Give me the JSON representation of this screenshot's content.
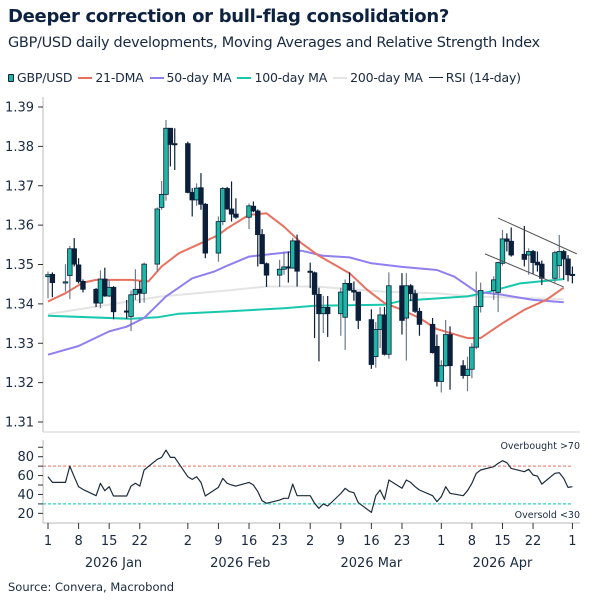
{
  "title": "Deeper correction or bull-flag consolidation?",
  "subtitle": "GBP/USD daily developments, Moving Averages and Relative Strength Index",
  "source": "Source: Convera, Macrobond",
  "legend": [
    {
      "label": "GBP/USD",
      "color": "#1fb5a5",
      "type": "candle"
    },
    {
      "label": "21-DMA",
      "color": "#e8705f",
      "type": "line"
    },
    {
      "label": "50-day MA",
      "color": "#8f7ff0",
      "type": "line"
    },
    {
      "label": "100-day MA",
      "color": "#17c8ae",
      "type": "line"
    },
    {
      "label": "200-day MA",
      "color": "#e4e4e4",
      "type": "line"
    },
    {
      "label": "RSI (14-day)",
      "color": "#1c2b3c",
      "type": "line"
    }
  ],
  "chart_data": {
    "type": "candlestick",
    "price_axis": {
      "ylim": [
        1.31,
        1.39
      ],
      "ticks": [
        "1.31",
        "1.32",
        "1.33",
        "1.34",
        "1.35",
        "1.36",
        "1.37",
        "1.38",
        "1.39"
      ]
    },
    "rsi_axis": {
      "ylim": [
        15,
        95
      ],
      "ticks": [
        "20",
        "40",
        "60",
        "80"
      ],
      "overbought": 70,
      "oversold": 30,
      "overbought_label": "Overbought >70",
      "oversold_label": "Oversold <30"
    },
    "x_axis": {
      "range": [
        "2026-01-01",
        "2026-05-01"
      ],
      "ticks": [
        {
          "date": "2026-01-01",
          "label": "1"
        },
        {
          "date": "2026-01-08",
          "label": "8"
        },
        {
          "date": "2026-01-15",
          "label": "15"
        },
        {
          "date": "2026-01-22",
          "label": "22"
        },
        {
          "date": "2026-02-02",
          "label": "2"
        },
        {
          "date": "2026-02-09",
          "label": "9"
        },
        {
          "date": "2026-02-16",
          "label": "16"
        },
        {
          "date": "2026-02-23",
          "label": "23"
        },
        {
          "date": "2026-03-02",
          "label": "2"
        },
        {
          "date": "2026-03-09",
          "label": "9"
        },
        {
          "date": "2026-03-16",
          "label": "16"
        },
        {
          "date": "2026-03-23",
          "label": "23"
        },
        {
          "date": "2026-04-01",
          "label": "1"
        },
        {
          "date": "2026-04-08",
          "label": "8"
        },
        {
          "date": "2026-04-15",
          "label": "15"
        },
        {
          "date": "2026-04-22",
          "label": "22"
        },
        {
          "date": "2026-05-01",
          "label": "1"
        }
      ],
      "months": [
        {
          "date": "2026-01-16",
          "label": "2026 Jan"
        },
        {
          "date": "2026-02-14",
          "label": "2026 Feb"
        },
        {
          "date": "2026-03-16",
          "label": "2026 Mar"
        },
        {
          "date": "2026-04-15",
          "label": "2026 Apr"
        }
      ]
    },
    "candle_colors": {
      "up": "#1fb5a5",
      "down": "#0b1f3a",
      "wick": "#6d7c8c"
    },
    "candles_columns": [
      "date",
      "open",
      "high",
      "low",
      "close"
    ],
    "candles": [
      [
        "2026-01-01",
        1.3469,
        1.3482,
        1.3414,
        1.3474
      ],
      [
        "2026-01-02",
        1.3475,
        1.348,
        1.3417,
        1.3454
      ],
      [
        "2026-01-05",
        1.3455,
        1.3501,
        1.3431,
        1.3456
      ],
      [
        "2026-01-06",
        1.3472,
        1.3547,
        1.3412,
        1.354
      ],
      [
        "2026-01-07",
        1.354,
        1.3567,
        1.3495,
        1.3501
      ],
      [
        "2026-01-08",
        1.3499,
        1.3516,
        1.3452,
        1.3457
      ],
      [
        "2026-01-09",
        1.3457,
        1.3462,
        1.3429,
        1.3437
      ],
      [
        "2026-01-12",
        1.3437,
        1.344,
        1.3392,
        1.3402
      ],
      [
        "2026-01-13",
        1.3402,
        1.3485,
        1.3389,
        1.3463
      ],
      [
        "2026-01-14",
        1.3463,
        1.3492,
        1.3418,
        1.342
      ],
      [
        "2026-01-15",
        1.342,
        1.3461,
        1.3417,
        1.3442
      ],
      [
        "2026-01-16",
        1.3442,
        1.3445,
        1.3361,
        1.338
      ],
      [
        "2026-01-19",
        1.3382,
        1.341,
        1.3362,
        1.3379
      ],
      [
        "2026-01-20",
        1.3368,
        1.3434,
        1.3331,
        1.3423
      ],
      [
        "2026-01-21",
        1.3424,
        1.3488,
        1.341,
        1.3437
      ],
      [
        "2026-01-22",
        1.3437,
        1.3458,
        1.3402,
        1.3427
      ],
      [
        "2026-01-23",
        1.3427,
        1.3505,
        1.3403,
        1.3501
      ],
      [
        "2026-01-26",
        1.3501,
        1.3645,
        1.3482,
        1.3641
      ],
      [
        "2026-01-27",
        1.3645,
        1.3712,
        1.3639,
        1.3678
      ],
      [
        "2026-01-28",
        1.3678,
        1.3867,
        1.3662,
        1.3846
      ],
      [
        "2026-01-29",
        1.3846,
        1.3846,
        1.3749,
        1.3805
      ],
      [
        "2026-01-30",
        1.3807,
        1.3846,
        1.374,
        1.3805
      ],
      [
        "2026-02-02",
        1.3807,
        1.3812,
        1.3681,
        1.3683
      ],
      [
        "2026-02-03",
        1.3683,
        1.3694,
        1.3622,
        1.3664
      ],
      [
        "2026-02-04",
        1.3664,
        1.3706,
        1.3649,
        1.3694
      ],
      [
        "2026-02-05",
        1.3695,
        1.3732,
        1.3639,
        1.3653
      ],
      [
        "2026-02-06",
        1.3653,
        1.3656,
        1.3516,
        1.3529
      ],
      [
        "2026-02-09",
        1.3529,
        1.3622,
        1.3507,
        1.3609
      ],
      [
        "2026-02-10",
        1.3609,
        1.3697,
        1.36,
        1.3693
      ],
      [
        "2026-02-11",
        1.3693,
        1.3697,
        1.3639,
        1.3641
      ],
      [
        "2026-02-12",
        1.3641,
        1.3711,
        1.3609,
        1.3628
      ],
      [
        "2026-02-13",
        1.3628,
        1.3668,
        1.3616,
        1.362
      ],
      [
        "2026-02-16",
        1.362,
        1.3655,
        1.359,
        1.3649
      ],
      [
        "2026-02-17",
        1.3648,
        1.366,
        1.3633,
        1.3636
      ],
      [
        "2026-02-18",
        1.3636,
        1.364,
        1.3495,
        1.3576
      ],
      [
        "2026-02-19",
        1.3576,
        1.359,
        1.3502,
        1.3502
      ],
      [
        "2026-02-20",
        1.3502,
        1.3505,
        1.3443,
        1.3473
      ],
      [
        "2026-02-23",
        1.3473,
        1.3512,
        1.3443,
        1.3488
      ],
      [
        "2026-02-24",
        1.3488,
        1.3533,
        1.3474,
        1.3494
      ],
      [
        "2026-02-25",
        1.3494,
        1.3533,
        1.3454,
        1.3491
      ],
      [
        "2026-02-26",
        1.3491,
        1.3568,
        1.3489,
        1.356
      ],
      [
        "2026-02-27",
        1.356,
        1.3576,
        1.3444,
        1.3483
      ],
      [
        "2026-03-02",
        1.3483,
        1.3505,
        1.344,
        1.3481
      ],
      [
        "2026-03-03",
        1.3479,
        1.3482,
        1.3313,
        1.3424
      ],
      [
        "2026-03-04",
        1.3424,
        1.3441,
        1.3254,
        1.3375
      ],
      [
        "2026-03-05",
        1.3375,
        1.342,
        1.3326,
        1.3391
      ],
      [
        "2026-03-06",
        1.3391,
        1.342,
        1.3316,
        1.3375
      ],
      [
        "2026-03-09",
        1.3375,
        1.3441,
        1.3319,
        1.343
      ],
      [
        "2026-03-10",
        1.3366,
        1.3462,
        1.3283,
        1.3452
      ],
      [
        "2026-03-11",
        1.3452,
        1.348,
        1.3433,
        1.3435
      ],
      [
        "2026-03-12",
        1.3434,
        1.3457,
        1.3408,
        1.343
      ],
      [
        "2026-03-13",
        1.343,
        1.343,
        1.3336,
        1.3358
      ],
      [
        "2026-03-16",
        1.336,
        1.3386,
        1.3235,
        1.3246
      ],
      [
        "2026-03-17",
        1.3266,
        1.3354,
        1.3238,
        1.3335
      ],
      [
        "2026-03-18",
        1.3335,
        1.3392,
        1.3288,
        1.3372
      ],
      [
        "2026-03-19",
        1.3372,
        1.3392,
        1.3269,
        1.3272
      ],
      [
        "2026-03-20",
        1.3272,
        1.348,
        1.3261,
        1.3446
      ],
      [
        "2026-03-23",
        1.3446,
        1.3478,
        1.3322,
        1.3358
      ],
      [
        "2026-03-24",
        1.3364,
        1.3478,
        1.3256,
        1.3446
      ],
      [
        "2026-03-25",
        1.3446,
        1.345,
        1.3407,
        1.3426
      ],
      [
        "2026-03-26",
        1.3426,
        1.3436,
        1.3377,
        1.3381
      ],
      [
        "2026-03-27",
        1.3381,
        1.339,
        1.3319,
        1.3348
      ],
      [
        "2026-03-30",
        1.3348,
        1.3364,
        1.3274,
        1.3276
      ],
      [
        "2026-03-31",
        1.3292,
        1.3322,
        1.319,
        1.3203
      ],
      [
        "2026-04-01",
        1.3203,
        1.3257,
        1.3175,
        1.3243
      ],
      [
        "2026-04-02",
        1.3243,
        1.3359,
        1.324,
        1.3322
      ],
      [
        "2026-04-03",
        1.3322,
        1.3343,
        1.3182,
        1.3243
      ],
      [
        "2026-04-06",
        1.3243,
        1.3257,
        1.321,
        1.3218
      ],
      [
        "2026-04-07",
        1.3218,
        1.3266,
        1.3178,
        1.3234
      ],
      [
        "2026-04-08",
        1.3234,
        1.33,
        1.3211,
        1.329
      ],
      [
        "2026-04-09",
        1.329,
        1.3482,
        1.3285,
        1.3393
      ],
      [
        "2026-04-10",
        1.3393,
        1.3454,
        1.3378,
        1.3434
      ],
      [
        "2026-04-13",
        1.3434,
        1.347,
        1.341,
        1.3461
      ],
      [
        "2026-04-14",
        1.3429,
        1.3507,
        1.3379,
        1.3505
      ],
      [
        "2026-04-15",
        1.3503,
        1.3588,
        1.3497,
        1.3565
      ],
      [
        "2026-04-16",
        1.3565,
        1.3579,
        1.3533,
        1.3559
      ],
      [
        "2026-04-17",
        1.3559,
        1.3594,
        1.352,
        1.3524
      ],
      [
        "2026-04-20",
        1.3526,
        1.3598,
        1.3495,
        1.3513
      ],
      [
        "2026-04-21",
        1.3524,
        1.3541,
        1.3474,
        1.3533
      ],
      [
        "2026-04-22",
        1.3533,
        1.3537,
        1.3476,
        1.3505
      ],
      [
        "2026-04-23",
        1.3506,
        1.3533,
        1.3482,
        1.3499
      ],
      [
        "2026-04-24",
        1.3501,
        1.351,
        1.3448,
        1.3465
      ],
      [
        "2026-04-27",
        1.3465,
        1.3535,
        1.3454,
        1.353
      ],
      [
        "2026-04-28",
        1.3497,
        1.3575,
        1.3465,
        1.3533
      ],
      [
        "2026-04-29",
        1.3533,
        1.3537,
        1.3461,
        1.3514
      ],
      [
        "2026-04-30",
        1.3514,
        1.3524,
        1.3457,
        1.3474
      ],
      [
        "2026-05-01",
        1.3475,
        1.3495,
        1.3452,
        1.3474
      ]
    ],
    "moving_averages": [
      {
        "name": "21-DMA",
        "color": "#e8705f",
        "points": [
          [
            "2026-01-01",
            1.3406
          ],
          [
            "2026-01-05",
            1.3427
          ],
          [
            "2026-01-09",
            1.3454
          ],
          [
            "2026-01-12",
            1.3461
          ],
          [
            "2026-01-20",
            1.3461
          ],
          [
            "2026-01-24",
            1.3457
          ],
          [
            "2026-01-27",
            1.3495
          ],
          [
            "2026-01-31",
            1.3529
          ],
          [
            "2026-02-05",
            1.3554
          ],
          [
            "2026-02-09",
            1.3575
          ],
          [
            "2026-02-11",
            1.3592
          ],
          [
            "2026-02-16",
            1.3626
          ],
          [
            "2026-02-20",
            1.363
          ],
          [
            "2026-02-24",
            1.3596
          ],
          [
            "2026-02-28",
            1.3554
          ],
          [
            "2026-03-04",
            1.3522
          ],
          [
            "2026-03-11",
            1.3478
          ],
          [
            "2026-03-15",
            1.3436
          ],
          [
            "2026-03-19",
            1.3402
          ],
          [
            "2026-03-23",
            1.3385
          ],
          [
            "2026-03-27",
            1.3364
          ],
          [
            "2026-03-31",
            1.3336
          ],
          [
            "2026-04-07",
            1.3313
          ],
          [
            "2026-04-10",
            1.3313
          ],
          [
            "2026-04-15",
            1.3351
          ],
          [
            "2026-04-20",
            1.3385
          ],
          [
            "2026-04-25",
            1.341
          ],
          [
            "2026-04-29",
            1.3441
          ]
        ]
      },
      {
        "name": "50-day MA",
        "color": "#8f7ff0",
        "points": [
          [
            "2026-01-01",
            1.3271
          ],
          [
            "2026-01-08",
            1.3293
          ],
          [
            "2026-01-15",
            1.333
          ],
          [
            "2026-01-19",
            1.3342
          ],
          [
            "2026-01-23",
            1.3364
          ],
          [
            "2026-01-28",
            1.3419
          ],
          [
            "2026-02-03",
            1.3465
          ],
          [
            "2026-02-08",
            1.3482
          ],
          [
            "2026-02-11",
            1.3497
          ],
          [
            "2026-02-16",
            1.352
          ],
          [
            "2026-02-28",
            1.3535
          ],
          [
            "2026-03-05",
            1.3522
          ],
          [
            "2026-03-11",
            1.3518
          ],
          [
            "2026-03-16",
            1.3503
          ],
          [
            "2026-03-23",
            1.3494
          ],
          [
            "2026-03-31",
            1.3486
          ],
          [
            "2026-04-04",
            1.3469
          ],
          [
            "2026-04-09",
            1.3431
          ],
          [
            "2026-04-15",
            1.3423
          ],
          [
            "2026-04-22",
            1.341
          ],
          [
            "2026-04-29",
            1.3404
          ]
        ]
      },
      {
        "name": "100-day MA",
        "color": "#17c8ae",
        "points": [
          [
            "2026-01-01",
            1.337
          ],
          [
            "2026-01-20",
            1.3362
          ],
          [
            "2026-01-26",
            1.3366
          ],
          [
            "2026-01-31",
            1.3375
          ],
          [
            "2026-02-11",
            1.3381
          ],
          [
            "2026-02-24",
            1.3389
          ],
          [
            "2026-03-03",
            1.3395
          ],
          [
            "2026-03-19",
            1.3398
          ],
          [
            "2026-03-23",
            1.3408
          ],
          [
            "2026-04-07",
            1.3419
          ],
          [
            "2026-04-12",
            1.3431
          ],
          [
            "2026-04-19",
            1.3452
          ],
          [
            "2026-04-29",
            1.3463
          ]
        ]
      },
      {
        "name": "200-day MA",
        "color": "#e4e4e4",
        "points": [
          [
            "2026-01-01",
            1.3374
          ],
          [
            "2026-01-12",
            1.3393
          ],
          [
            "2026-01-27",
            1.3419
          ],
          [
            "2026-02-11",
            1.3434
          ],
          [
            "2026-02-20",
            1.3444
          ],
          [
            "2026-03-03",
            1.3444
          ],
          [
            "2026-03-19",
            1.3431
          ],
          [
            "2026-03-31",
            1.3427
          ],
          [
            "2026-04-08",
            1.3419
          ],
          [
            "2026-04-29",
            1.3412
          ]
        ]
      }
    ],
    "flag_trendlines": [
      {
        "from": [
          "2026-04-14",
          1.3618
        ],
        "to": [
          "2026-05-02",
          1.3527
        ]
      },
      {
        "from": [
          "2026-04-11",
          1.3527
        ],
        "to": [
          "2026-04-29",
          1.3443
        ]
      }
    ],
    "rsi": [
      58.8,
      52.8,
      52.8,
      70,
      58.8,
      48.2,
      45.4,
      38.7,
      51.8,
      44,
      48.2,
      38.4,
      38.4,
      48.9,
      51.8,
      48.9,
      65.9,
      77.2,
      79.3,
      87,
      79.3,
      79.3,
      58.8,
      56,
      58.8,
      52.8,
      38.4,
      47.5,
      57,
      51.8,
      50,
      48.9,
      52.8,
      50,
      43,
      33.4,
      30.6,
      34,
      35.9,
      35.9,
      51,
      38.7,
      38.7,
      30.6,
      25.3,
      30,
      27.8,
      41,
      46.5,
      43,
      41.9,
      31.3,
      21,
      38.7,
      44.7,
      34.8,
      55.3,
      46.5,
      55.3,
      52.8,
      48.2,
      44.7,
      38.7,
      32.4,
      37.6,
      48.2,
      41.2,
      38.7,
      44,
      51.8,
      62.4,
      65.9,
      69.4,
      72.9,
      75.8,
      73.6,
      67.6,
      64.1,
      66.6,
      60.6,
      59.5,
      51,
      62.4,
      63,
      57,
      47.5,
      48.2
    ]
  }
}
